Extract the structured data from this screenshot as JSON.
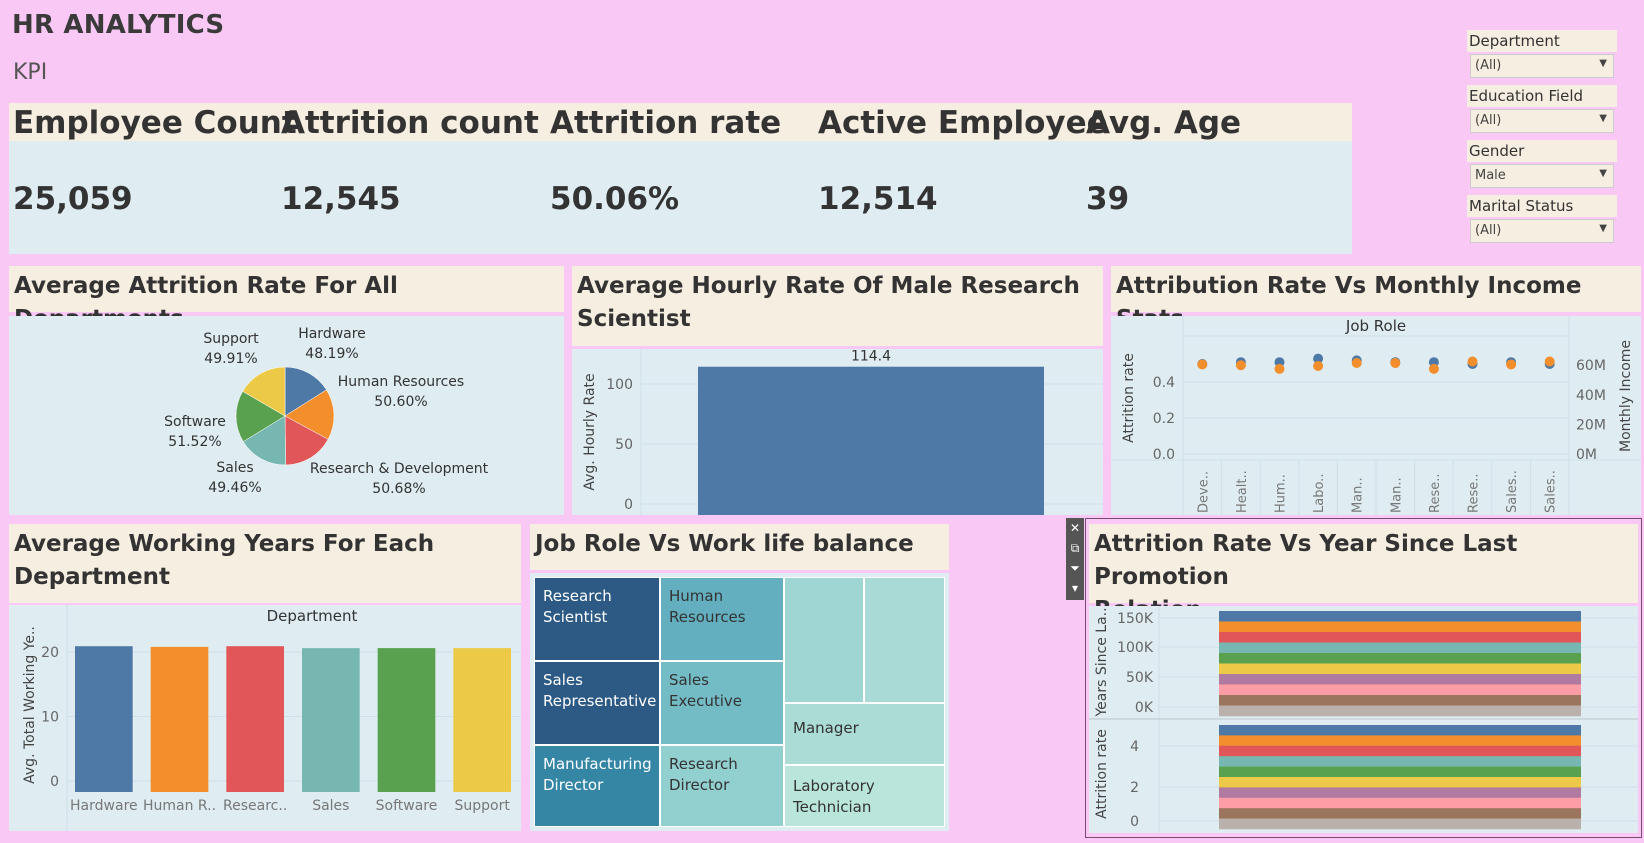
{
  "dashboard": {
    "title": "HR ANALYTICS",
    "section": "KPI"
  },
  "kpis": [
    {
      "label": "Employee Count",
      "value": "25,059"
    },
    {
      "label": "Attrition count",
      "value": "12,545"
    },
    {
      "label": "Attrition rate",
      "value": "50.06%"
    },
    {
      "label": "Active Employee",
      "value": "12,514"
    },
    {
      "label": "Avg. Age",
      "value": "39"
    }
  ],
  "filters": [
    {
      "label": "Department",
      "value": "(All)"
    },
    {
      "label": "Education Field",
      "value": "(All)"
    },
    {
      "label": "Gender",
      "value": "Male"
    },
    {
      "label": "Marital Status",
      "value": "(All)"
    }
  ],
  "toolstrip": {
    "close": "✕",
    "popout": "⧉",
    "filter": "⏷",
    "more": "▾"
  },
  "charts": {
    "pie": {
      "title": "Average Attrition Rate For All Departments"
    },
    "hourly": {
      "title_line1": "Average Hourly Rate Of Male Research",
      "title_line2": "Scientist"
    },
    "income": {
      "title": "Attribution Rate Vs Monthly Income Stats"
    },
    "working": {
      "title_line1": "Average Working Years For Each",
      "title_line2": "Department"
    },
    "treemap": {
      "title": "Job Role Vs Work life balance"
    },
    "promotion": {
      "title_line1": "Attrition Rate Vs Year Since Last Promotion",
      "title_line2": "Relation"
    }
  },
  "chart_data": [
    {
      "type": "pie",
      "title": "Average Attrition Rate For All Departments",
      "slices": [
        {
          "name": "Hardware",
          "label": "48.19%",
          "value": 48.19,
          "color": "#4e79a7"
        },
        {
          "name": "Human Resources",
          "label": "50.60%",
          "value": 50.6,
          "color": "#f28e2b"
        },
        {
          "name": "Research & Development",
          "label": "50.68%",
          "value": 50.68,
          "color": "#e15759"
        },
        {
          "name": "Sales",
          "label": "49.46%",
          "value": 49.46,
          "color": "#76b7b2"
        },
        {
          "name": "Software",
          "label": "51.52%",
          "value": 51.52,
          "color": "#59a14f"
        },
        {
          "name": "Support",
          "label": "49.91%",
          "value": 49.91,
          "color": "#edc948"
        }
      ]
    },
    {
      "type": "bar",
      "title": "Average Hourly Rate Of Male Research Scientist",
      "ylabel": "Avg. Hourly Rate",
      "ylim": [
        0,
        130
      ],
      "yticks": [
        "0",
        "50",
        "100"
      ],
      "values": [
        114.4
      ],
      "data_label": "114.4",
      "color": "#4e79a7"
    },
    {
      "type": "scatter",
      "title": "Attribution Rate Vs Monthly Income Stats",
      "header": "Job Role",
      "ylabel_left": "Attrition rate",
      "ylabel_right": "Monthly Income",
      "ylim_left": [
        0,
        0.6
      ],
      "yticks_left": [
        "0.0",
        "0.2",
        "0.4"
      ],
      "ylim_right": [
        0,
        75
      ],
      "yticks_right": [
        "0M",
        "20M",
        "40M",
        "60M"
      ],
      "categories": [
        "Deve..",
        "Healt..",
        "Hum..",
        "Labo..",
        "Man..",
        "Man..",
        "Rese..",
        "Rese..",
        "Sales..",
        "Sales.."
      ],
      "series": [
        {
          "name": "Attrition rate",
          "color": "#4e79a7",
          "values": [
            0.5,
            0.51,
            0.51,
            0.53,
            0.52,
            0.51,
            0.51,
            0.5,
            0.51,
            0.5
          ]
        },
        {
          "name": "Monthly Income",
          "color": "#f28e2b",
          "values": [
            60.5,
            60.0,
            57.5,
            59.5,
            61.5,
            61.5,
            57.5,
            62.5,
            60.5,
            62.5
          ]
        }
      ]
    },
    {
      "type": "bar",
      "title": "Average Working Years For Each Department",
      "header": "Department",
      "ylabel": "Avg. Total Working Ye..",
      "ylim": [
        0,
        22.5
      ],
      "yticks": [
        "0",
        "10",
        "20"
      ],
      "categories": [
        "Hardware",
        "Human R..",
        "Researc..",
        "Sales",
        "Software",
        "Support"
      ],
      "values": [
        20.9,
        20.8,
        20.9,
        20.6,
        20.6,
        20.6
      ],
      "colors": [
        "#4e79a7",
        "#f28e2b",
        "#e15759",
        "#76b7b2",
        "#59a14f",
        "#edc948"
      ]
    },
    {
      "type": "treemap",
      "title": "Job Role Vs Work life balance",
      "cells": [
        {
          "label": "Research Scientist",
          "line1": "Research",
          "line2": "Scientist",
          "color": "#2c5a85"
        },
        {
          "label": "Human Resources",
          "line1": "Human",
          "line2": "Resources",
          "color": "#63afc0"
        },
        {
          "label": "",
          "line1": "",
          "line2": "",
          "color": "#9fd5d2"
        },
        {
          "label": "",
          "line1": "",
          "line2": "",
          "color": "#a9dad5"
        },
        {
          "label": "Sales Representative",
          "line1": "Sales",
          "line2": "Representative",
          "color": "#2c5a85"
        },
        {
          "label": "Sales Executive",
          "line1": "Sales",
          "line2": "Executive",
          "color": "#73bcc6"
        },
        {
          "label": "Manager",
          "line1": "Manager",
          "line2": "",
          "color": "#abdcd6"
        },
        {
          "label": "Manufacturing Director",
          "line1": "Manufacturing",
          "line2": "Director",
          "color": "#3585a5"
        },
        {
          "label": "Research Director",
          "line1": "Research",
          "line2": "Director",
          "color": "#92cfcf"
        },
        {
          "label": "Laboratory Technician",
          "line1": "Laboratory",
          "line2": "Technician",
          "color": "#b9e5da"
        }
      ]
    },
    {
      "type": "bar",
      "title": "Attrition Rate Vs Year Since Last Promotion Relation",
      "panels": [
        {
          "ylabel": "Years Since La..",
          "yticks": [
            "0K",
            "50K",
            "100K",
            "150K"
          ],
          "ylim": [
            0,
            160
          ]
        },
        {
          "ylabel": "Attrition rate",
          "yticks": [
            "0",
            "2",
            "4"
          ],
          "ylim": [
            0,
            5.2
          ]
        }
      ],
      "stack_colors": [
        "#4e79a7",
        "#f28e2b",
        "#e15759",
        "#76b7b2",
        "#59a14f",
        "#edc948",
        "#b07aa1",
        "#ff9da7",
        "#9c755f",
        "#bab0ac"
      ]
    }
  ]
}
